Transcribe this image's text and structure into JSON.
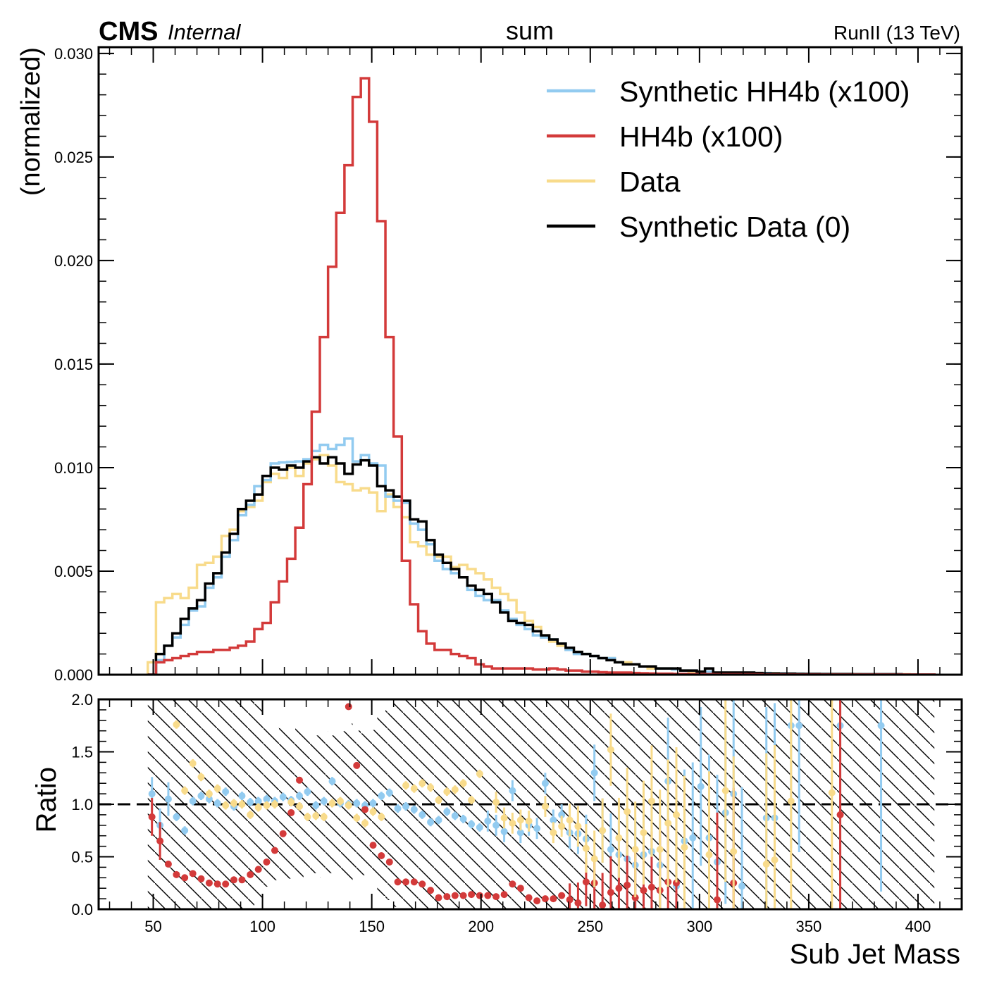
{
  "header": {
    "experiment": "CMS",
    "status": "Internal",
    "title": "sum",
    "lumi": "RunII (13 TeV)"
  },
  "chart_data": [
    {
      "type": "line",
      "panel": "main",
      "title": "sum",
      "xlabel": "Sub Jet Mass",
      "ylabel": "(normalized)",
      "xlim": [
        25,
        420
      ],
      "ylim": [
        0,
        0.0303
      ],
      "yticks": [
        "0.000",
        "0.005",
        "0.010",
        "0.015",
        "0.020",
        "0.025",
        "0.030"
      ],
      "xticks": [
        "50",
        "100",
        "150",
        "200",
        "250",
        "300",
        "350",
        "400"
      ],
      "legend_position": "top-right",
      "bin_edges_start": 47.5,
      "bin_width": 3.75,
      "colors": {
        "synthetic_hh4b": "#92cbf0",
        "hh4b": "#d33a3a",
        "data": "#f8db8b",
        "synthetic_data": "#000000"
      },
      "series": [
        {
          "name": "Synthetic HH4b (x100)",
          "color": "#92cbf0",
          "values": [
            0.0,
            0.0007,
            0.0014,
            0.0018,
            0.0024,
            0.0031,
            0.0033,
            0.0042,
            0.0047,
            0.0057,
            0.0065,
            0.0077,
            0.0082,
            0.0091,
            0.0094,
            0.0102,
            0.01025,
            0.01027,
            0.0103,
            0.0104,
            0.0108,
            0.0111,
            0.0109,
            0.0111,
            0.0114,
            0.0103,
            0.0106,
            0.0102,
            0.0101,
            0.0086,
            0.0084,
            0.0083,
            0.0073,
            0.007,
            0.0063,
            0.0055,
            0.0051,
            0.0049,
            0.0047,
            0.0041,
            0.0038,
            0.0036,
            0.0036,
            0.0031,
            0.0027,
            0.0024,
            0.0022,
            0.0019,
            0.0018,
            0.0017,
            0.0015,
            0.0012,
            0.001,
            0.001,
            0.0009,
            0.0008,
            0.0008,
            0.0006,
            0.0005,
            0.0005,
            0.0004,
            0.0004,
            0.0003,
            0.0003,
            0.00025,
            0.0002,
            0.0002,
            0.00015,
            0.00015,
            0.0001,
            0.0001,
            0.0001,
            0.0001,
            0.0001,
            8e-05,
            8e-05,
            6e-05,
            6e-05,
            5e-05,
            5e-05,
            4e-05,
            4e-05,
            4e-05,
            3e-05,
            3e-05,
            3e-05,
            2e-05,
            2e-05,
            2e-05,
            2e-05,
            2e-05,
            2e-05,
            1e-05,
            1e-05,
            1e-05,
            1e-05
          ]
        },
        {
          "name": "HH4b (x100)",
          "color": "#d33a3a",
          "values": [
            0.0,
            0.0006,
            0.0007,
            0.0008,
            0.0009,
            0.001,
            0.0011,
            0.0011,
            0.0012,
            0.0012,
            0.0013,
            0.0014,
            0.0016,
            0.0022,
            0.0025,
            0.0035,
            0.0045,
            0.0056,
            0.0071,
            0.0092,
            0.0127,
            0.0163,
            0.0197,
            0.0223,
            0.0246,
            0.0279,
            0.0288,
            0.0267,
            0.0219,
            0.0163,
            0.0115,
            0.0055,
            0.0034,
            0.0021,
            0.0015,
            0.0012,
            0.0012,
            0.001,
            0.0009,
            0.0008,
            0.0005,
            0.0004,
            0.0003,
            0.0003,
            0.0003,
            0.0003,
            0.0003,
            0.00025,
            0.00025,
            0.0003,
            0.00025,
            0.0002,
            0.0002,
            0.00015,
            0.00015,
            0.00012,
            0.0001,
            0.0001,
            0.0001,
            8e-05,
            7e-05,
            6e-05,
            5e-05,
            5e-05,
            4e-05,
            4e-05,
            3e-05,
            3e-05,
            3e-05,
            2e-05,
            2e-05,
            2e-05,
            2e-05,
            2e-05,
            2e-05,
            1e-05,
            1e-05,
            1e-05,
            1e-05,
            1e-05,
            1e-05,
            1e-05,
            1e-05,
            1e-05,
            1e-05,
            1e-05,
            1e-05,
            1e-05,
            1e-05,
            1e-05,
            1e-05,
            1e-05,
            1e-05,
            1e-05,
            1e-05,
            1e-05
          ]
        },
        {
          "name": "Data",
          "color": "#f8db8b",
          "values": [
            0.0006,
            0.0035,
            0.0037,
            0.0039,
            0.0037,
            0.0042,
            0.0053,
            0.0054,
            0.0057,
            0.0067,
            0.007,
            0.0079,
            0.0081,
            0.0084,
            0.0093,
            0.0097,
            0.0095,
            0.01,
            0.0096,
            0.0102,
            0.0104,
            0.0106,
            0.0101,
            0.0093,
            0.0092,
            0.0089,
            0.009,
            0.0088,
            0.0079,
            0.0087,
            0.0081,
            0.0076,
            0.0064,
            0.0062,
            0.0058,
            0.0057,
            0.0057,
            0.0052,
            0.0053,
            0.0051,
            0.0049,
            0.0046,
            0.0042,
            0.0039,
            0.0036,
            0.003,
            0.0026,
            0.0023,
            0.0019,
            0.0016,
            0.0014,
            0.0012,
            0.0011,
            0.001,
            0.0009,
            0.0008,
            0.0008,
            0.0006,
            0.0006,
            0.0005,
            0.0004,
            0.0003,
            0.0003,
            0.0003,
            0.00025,
            0.0002,
            0.00015,
            0.00015,
            0.00012,
            0.0001,
            0.0001,
            0.0001,
            0.0001,
            0.0001,
            8e-05,
            8e-05,
            7e-05,
            6e-05,
            5e-05,
            5e-05,
            4e-05,
            4e-05,
            4e-05,
            3e-05,
            3e-05,
            3e-05,
            3e-05,
            2e-05,
            2e-05,
            2e-05,
            2e-05,
            2e-05,
            2e-05,
            1e-05,
            1e-05,
            1e-05
          ]
        },
        {
          "name": "Synthetic Data (0)",
          "color": "#000000",
          "values": [
            0.0,
            0.001,
            0.0014,
            0.002,
            0.0027,
            0.0032,
            0.0036,
            0.0044,
            0.0049,
            0.0059,
            0.0068,
            0.008,
            0.0084,
            0.0087,
            0.0096,
            0.01,
            0.0099,
            0.0101,
            0.01,
            0.0103,
            0.0105,
            0.0102,
            0.0105,
            0.0102,
            0.0097,
            0.01015,
            0.01035,
            0.0101,
            0.0091,
            0.0089,
            0.0086,
            0.0084,
            0.0075,
            0.0074,
            0.0065,
            0.0058,
            0.0054,
            0.0051,
            0.0047,
            0.0043,
            0.0041,
            0.0039,
            0.0035,
            0.003,
            0.0026,
            0.0025,
            0.0024,
            0.0021,
            0.0019,
            0.0017,
            0.0015,
            0.0013,
            0.0011,
            0.001,
            0.0009,
            0.0008,
            0.0007,
            0.0006,
            0.0005,
            0.0005,
            0.0004,
            0.0004,
            0.0003,
            0.0003,
            0.0003,
            0.0002,
            0.0002,
            0.00015,
            0.0003,
            0.0001,
            0.0001,
            0.0001,
            0.0001,
            0.0001,
            8e-05,
            6e-05,
            6e-05,
            5e-05,
            5e-05,
            4e-05,
            4e-05,
            4e-05,
            3e-05,
            3e-05,
            3e-05,
            3e-05,
            2e-05,
            2e-05,
            2e-05,
            2e-05,
            2e-05,
            2e-05,
            1e-05,
            1e-05,
            1e-05,
            1e-05
          ]
        }
      ]
    },
    {
      "type": "scatter",
      "panel": "ratio",
      "xlabel": "Sub Jet Mass",
      "ylabel": "Ratio",
      "xlim": [
        25,
        420
      ],
      "ylim": [
        0,
        2
      ],
      "yticks": [
        "0.0",
        "0.5",
        "1.0",
        "1.5",
        "2.0"
      ],
      "xticks": [
        "50",
        "100",
        "150",
        "200",
        "250",
        "300",
        "350",
        "400"
      ],
      "reference_line": 1.0,
      "bin_edges_start": 47.5,
      "bin_width": 3.75,
      "hatched_band": "statistical uncertainty of the reference, widening above ~240",
      "series": [
        {
          "name": "Synthetic HH4b (x100)",
          "color": "#92cbf0",
          "x": [
            49.4,
            53.1,
            56.9,
            60.6,
            64.4,
            68.1,
            71.9,
            75.6,
            79.4,
            83.1,
            86.9,
            90.6,
            94.4,
            98.1,
            101.9,
            105.6,
            109.4,
            113.1,
            116.9,
            120.6,
            124.4,
            128.1,
            131.9,
            135.6,
            139.4,
            143.1,
            146.9,
            150.6,
            154.4,
            158.1,
            161.9,
            165.6,
            169.4,
            173.1,
            176.9,
            180.6,
            184.4,
            188.1,
            191.9,
            195.6,
            199.4,
            203.1,
            206.9,
            210.6,
            214.4,
            218.1,
            221.9,
            225.6,
            229.4,
            233.1,
            236.9,
            240.6,
            244.4,
            248.1,
            251.9,
            255.6,
            259.4,
            263.1,
            266.9,
            270.6,
            274.4,
            278.1,
            281.9,
            285.6,
            289.4,
            293.1,
            296.9,
            300.6,
            304.4,
            308.1,
            311.9,
            315.6,
            319.4,
            330.6,
            334.4,
            341.9,
            345.6,
            364.4,
            383.1
          ],
          "values": [
            1.1,
            0.8,
            1.05,
            0.88,
            0.75,
            1.03,
            1.08,
            1.05,
            1.01,
            1.12,
            0.98,
            1.08,
            1.02,
            1.03,
            1.05,
            1.03,
            1.07,
            1.04,
            1.08,
            1.12,
            0.99,
            1.03,
            1.22,
            1.01,
            1.0,
            1.01,
            0.99,
            1.01,
            1.08,
            1.11,
            0.96,
            0.98,
            0.95,
            0.9,
            0.83,
            0.85,
            0.93,
            0.89,
            0.86,
            0.81,
            0.78,
            0.84,
            0.8,
            0.74,
            1.13,
            0.73,
            0.8,
            0.77,
            1.2,
            0.85,
            0.9,
            0.73,
            0.72,
            0.67,
            1.3,
            0.75,
            0.57,
            0.52,
            0.48,
            0.42,
            0.52,
            0.55,
            0.42,
            1.22,
            0.22,
            0.65,
            0.68,
            1.17,
            0.68,
            0.45,
            0.92,
            1.1,
            0.22,
            0.87,
            0.87,
            1.75,
            1.75,
            1.75,
            1.75
          ]
        },
        {
          "name": "HH4b (x100)",
          "color": "#d33a3a",
          "x": [
            49.4,
            53.1,
            56.9,
            60.6,
            64.4,
            68.1,
            71.9,
            75.6,
            79.4,
            83.1,
            86.9,
            90.6,
            94.4,
            98.1,
            101.9,
            105.6,
            109.4,
            113.1,
            116.9,
            139.4,
            143.1,
            146.9,
            150.6,
            154.4,
            158.1,
            161.9,
            165.6,
            169.4,
            173.1,
            176.9,
            180.6,
            184.4,
            188.1,
            191.9,
            195.6,
            199.4,
            203.1,
            206.9,
            210.6,
            214.4,
            218.1,
            221.9,
            225.6,
            229.4,
            233.1,
            236.9,
            240.6,
            244.4,
            248.1,
            251.9,
            255.6,
            259.4,
            263.1,
            266.9,
            270.6,
            274.4,
            278.1,
            281.9,
            285.6,
            289.4,
            308.1,
            315.6,
            364.4
          ],
          "values": [
            0.88,
            0.65,
            0.43,
            0.33,
            0.3,
            0.34,
            0.29,
            0.25,
            0.24,
            0.24,
            0.28,
            0.28,
            0.33,
            0.38,
            0.45,
            0.56,
            0.72,
            0.92,
            1.23,
            1.93,
            1.37,
            0.95,
            0.61,
            0.51,
            0.45,
            0.26,
            0.26,
            0.26,
            0.24,
            0.18,
            0.11,
            0.12,
            0.13,
            0.13,
            0.14,
            0.13,
            0.13,
            0.12,
            0.14,
            0.24,
            0.2,
            0.11,
            0.08,
            0.1,
            0.1,
            0.13,
            0.09,
            0.06,
            0.26,
            0.25,
            0.04,
            0.16,
            0.2,
            0.23,
            0.11,
            0.18,
            0.21,
            0.18,
            0.26,
            0.25,
            0.09,
            0.25,
            0.9
          ]
        },
        {
          "name": "Data",
          "color": "#f8db8b",
          "x": [
            60.6,
            64.4,
            68.1,
            71.9,
            75.6,
            79.4,
            83.1,
            86.9,
            90.6,
            94.4,
            98.1,
            101.9,
            105.6,
            113.1,
            116.9,
            120.6,
            124.4,
            128.1,
            131.9,
            135.6,
            139.4,
            143.1,
            146.9,
            150.6,
            154.4,
            165.6,
            169.4,
            173.1,
            176.9,
            180.6,
            184.4,
            188.1,
            191.9,
            195.6,
            199.4,
            206.9,
            210.6,
            214.4,
            218.1,
            221.9,
            229.4,
            233.1,
            236.9,
            240.6,
            244.4,
            248.1,
            251.9,
            255.6,
            259.4,
            263.1,
            266.9,
            270.6,
            274.4,
            278.1,
            281.9,
            285.6,
            289.4,
            293.1,
            304.4,
            311.9,
            315.6,
            330.6,
            334.4,
            341.9,
            360.6
          ],
          "values": [
            1.76,
            1.13,
            1.39,
            1.26,
            1.1,
            1.15,
            0.99,
            1.01,
            1.0,
            0.9,
            0.97,
            0.99,
            1.0,
            1.02,
            0.98,
            0.88,
            0.89,
            0.88,
            1.01,
            1.03,
            0.99,
            0.87,
            0.82,
            0.93,
            0.88,
            1.18,
            1.15,
            1.2,
            1.16,
            1.04,
            1.12,
            1.14,
            1.2,
            1.04,
            1.29,
            1.02,
            0.87,
            0.82,
            0.85,
            0.84,
            0.98,
            0.73,
            0.79,
            0.85,
            0.79,
            0.58,
            0.48,
            0.75,
            1.52,
            0.68,
            0.93,
            0.57,
            0.73,
            1.03,
            0.57,
            0.82,
            0.9,
            0.59,
            0.52,
            1.13,
            0.55,
            0.43,
            0.47,
            1.03,
            1.11
          ]
        }
      ]
    }
  ]
}
